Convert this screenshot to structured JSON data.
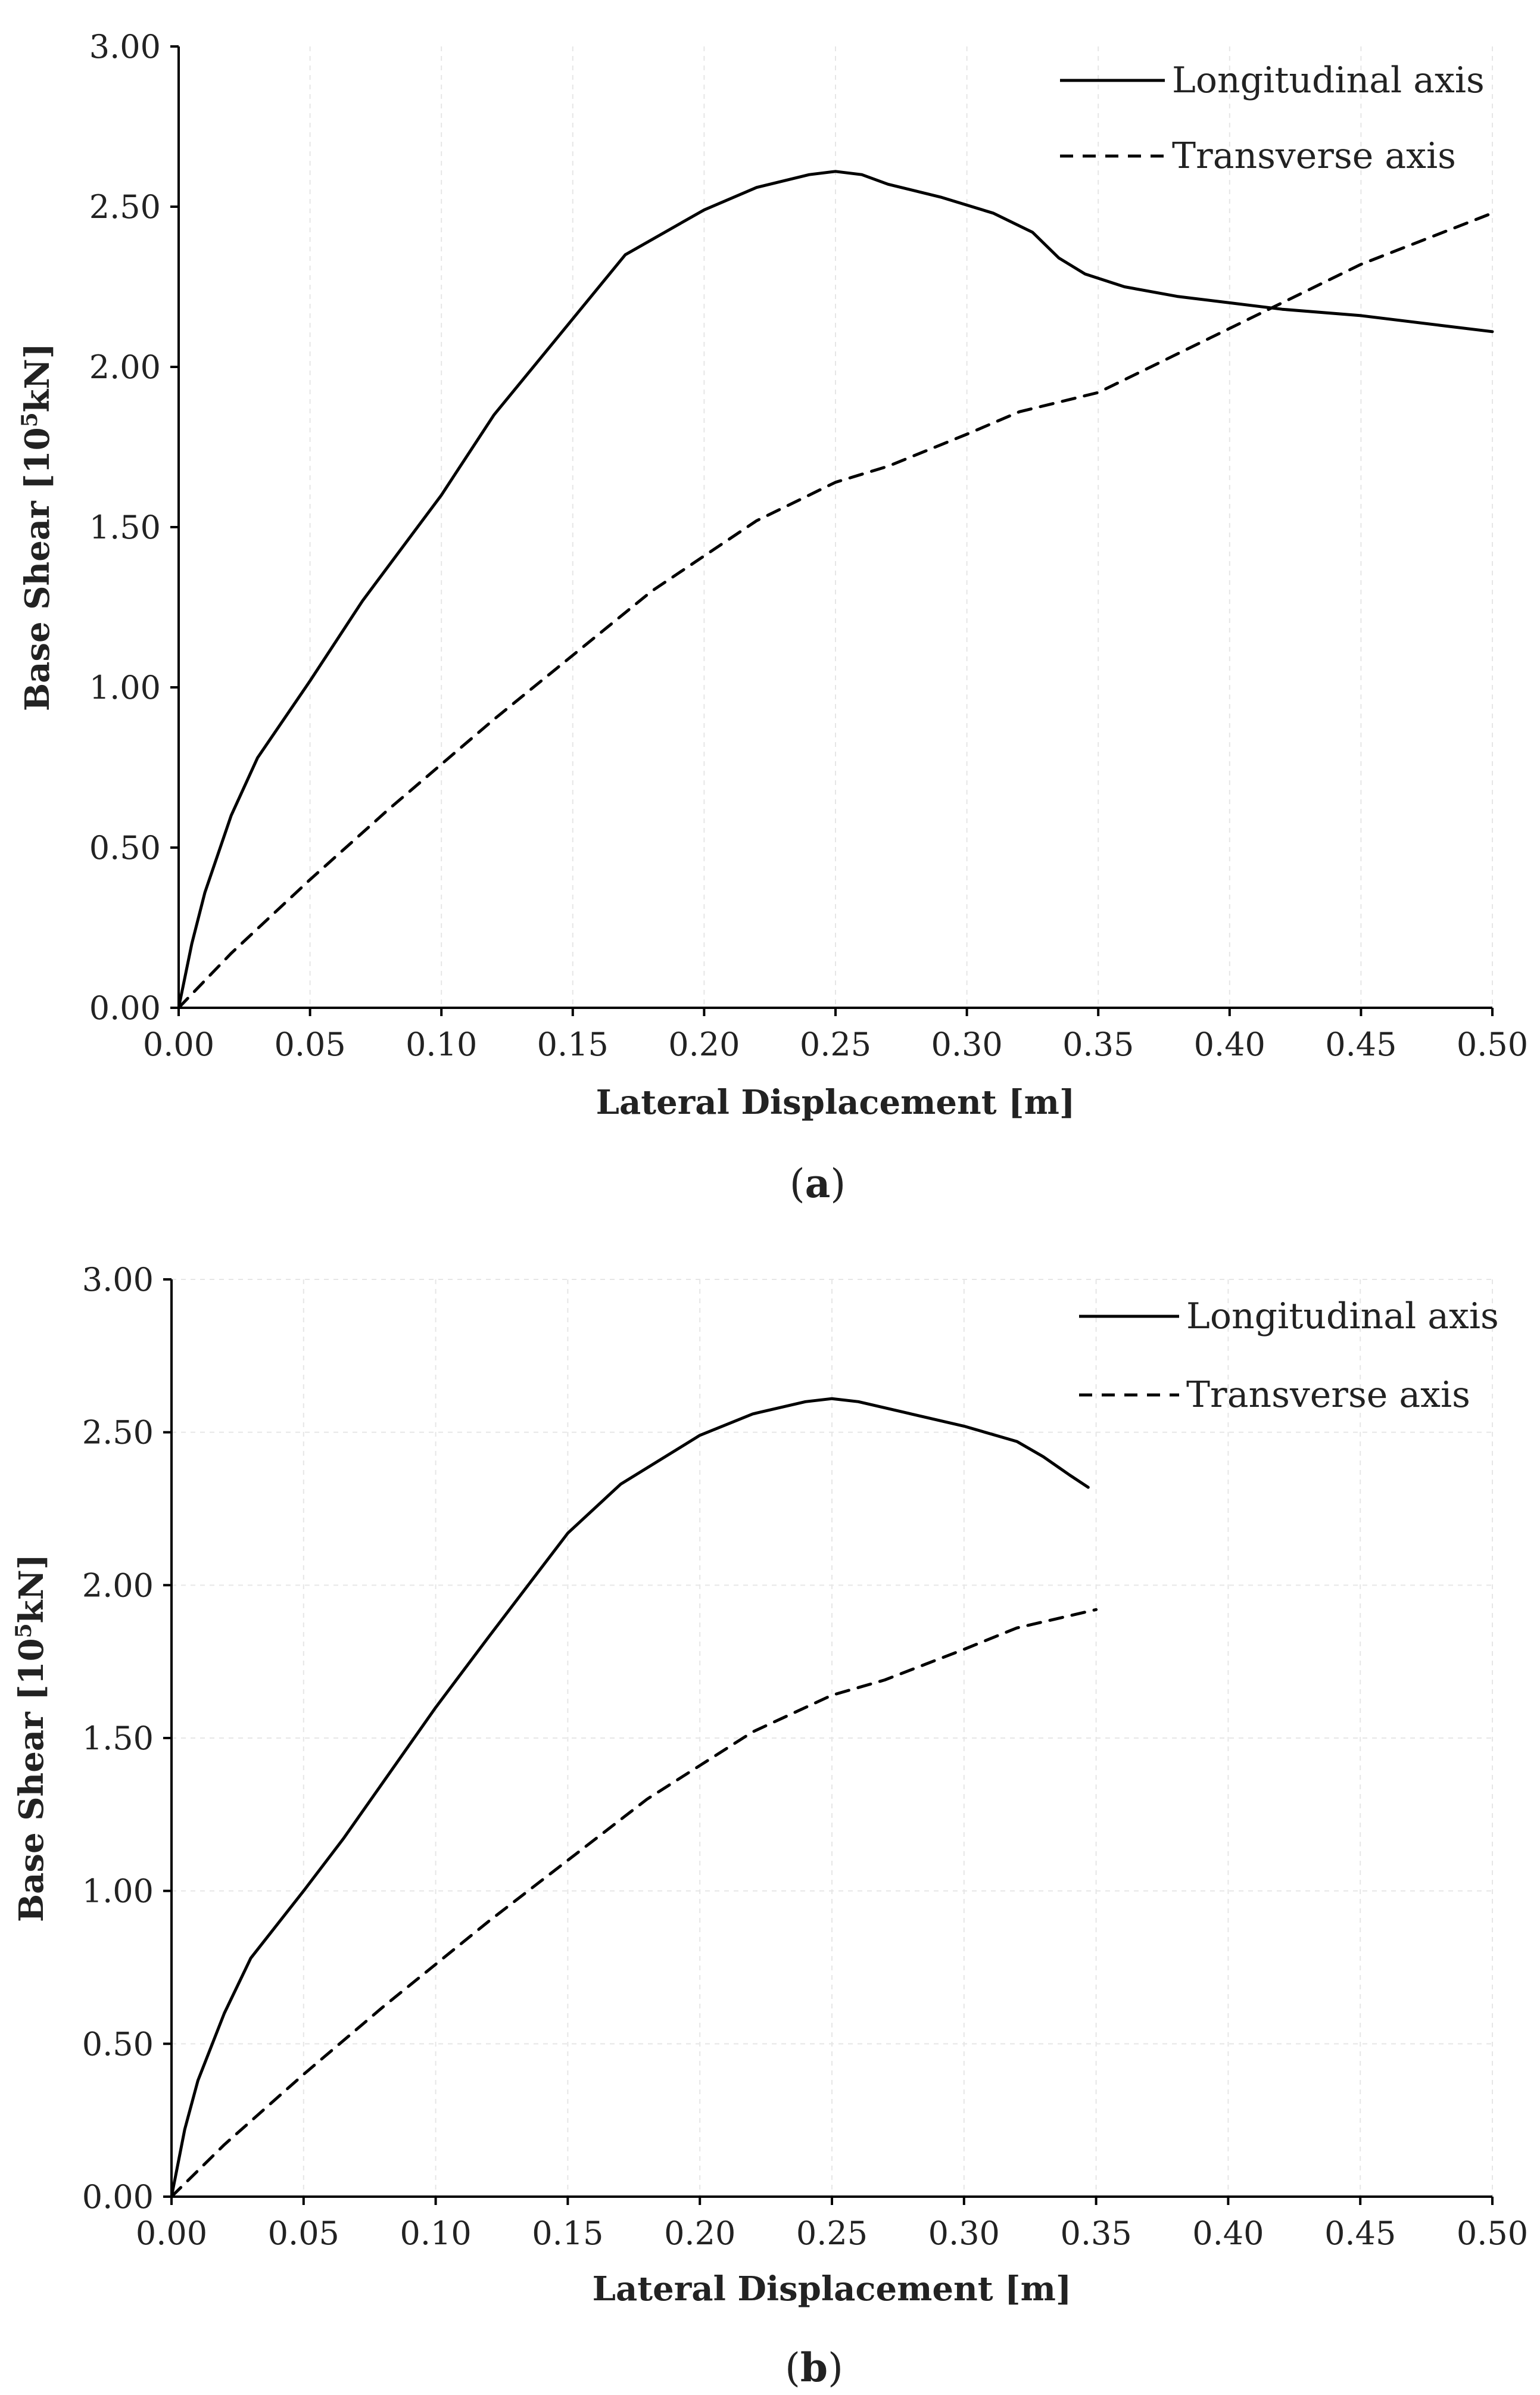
{
  "figure": {
    "captions": [
      "(a)",
      "(b)"
    ]
  },
  "colors": {
    "line": "#000000",
    "grid": "#e6e6e6",
    "text": "#222222"
  },
  "chart_data": [
    {
      "type": "line",
      "panel": "a",
      "caption": "a",
      "xlabel": "Lateral Displacement [m]",
      "ylabel_main": "Base Shear [10",
      "ylabel_sup": "5",
      "ylabel_tail": "kN]",
      "ylabel": "Base Shear [10^5kN]",
      "xlim": [
        0,
        0.5
      ],
      "ylim": [
        0,
        3
      ],
      "xticks": [
        0,
        0.05,
        0.1,
        0.15,
        0.2,
        0.25,
        0.3,
        0.35,
        0.4,
        0.45,
        0.5
      ],
      "xtick_labels": [
        "0.00",
        "0.05",
        "0.10",
        "0.15",
        "0.20",
        "0.25",
        "0.30",
        "0.35",
        "0.40",
        "0.45",
        "0.50"
      ],
      "yticks": [
        0,
        0.5,
        1,
        1.5,
        2,
        2.5,
        3
      ],
      "ytick_labels": [
        "0.00",
        "0.50",
        "1.00",
        "1.50",
        "2.00",
        "2.50",
        "3.00"
      ],
      "grid": "vertical dotted",
      "legend_position": "top-right",
      "series": [
        {
          "name": "Longitudinal axis",
          "style": "solid",
          "x": [
            0,
            0.005,
            0.01,
            0.02,
            0.03,
            0.05,
            0.07,
            0.1,
            0.12,
            0.15,
            0.17,
            0.2,
            0.22,
            0.24,
            0.25,
            0.26,
            0.27,
            0.29,
            0.31,
            0.325,
            0.335,
            0.345,
            0.36,
            0.38,
            0.4,
            0.42,
            0.45,
            0.48,
            0.5
          ],
          "y": [
            0,
            0.2,
            0.36,
            0.6,
            0.78,
            1.02,
            1.27,
            1.6,
            1.85,
            2.15,
            2.35,
            2.49,
            2.56,
            2.6,
            2.61,
            2.6,
            2.57,
            2.53,
            2.48,
            2.42,
            2.34,
            2.29,
            2.25,
            2.22,
            2.2,
            2.18,
            2.16,
            2.13,
            2.11
          ]
        },
        {
          "name": "Transverse axis",
          "style": "dashed",
          "x": [
            0,
            0.02,
            0.05,
            0.08,
            0.1,
            0.12,
            0.15,
            0.18,
            0.2,
            0.22,
            0.25,
            0.27,
            0.3,
            0.32,
            0.34,
            0.35,
            0.4,
            0.45,
            0.5
          ],
          "y": [
            0,
            0.17,
            0.4,
            0.62,
            0.76,
            0.9,
            1.1,
            1.3,
            1.41,
            1.52,
            1.64,
            1.69,
            1.79,
            1.86,
            1.9,
            1.92,
            2.12,
            2.32,
            2.48
          ]
        }
      ]
    },
    {
      "type": "line",
      "panel": "b",
      "caption": "b",
      "xlabel": "Lateral Displacement [m]",
      "ylabel_main": "Base Shear  [10",
      "ylabel_sup": "5",
      "ylabel_tail": "kN]",
      "ylabel": "Base Shear [10^5kN]",
      "xlim": [
        0,
        0.5
      ],
      "ylim": [
        0,
        3
      ],
      "xticks": [
        0,
        0.05,
        0.1,
        0.15,
        0.2,
        0.25,
        0.3,
        0.35,
        0.4,
        0.45,
        0.5
      ],
      "xtick_labels": [
        "0.00",
        "0.05",
        "0.10",
        "0.15",
        "0.20",
        "0.25",
        "0.30",
        "0.35",
        "0.40",
        "0.45",
        "0.50"
      ],
      "yticks": [
        0,
        0.5,
        1,
        1.5,
        2,
        2.5,
        3
      ],
      "ytick_labels": [
        "0.00",
        "0.50",
        "1.00",
        "1.50",
        "2.00",
        "2.50",
        "3.00"
      ],
      "grid": "vertical and horizontal",
      "legend_position": "top-right",
      "series": [
        {
          "name": "Longitudinal axis",
          "style": "solid",
          "x": [
            0,
            0.005,
            0.01,
            0.02,
            0.03,
            0.05,
            0.065,
            0.1,
            0.12,
            0.15,
            0.17,
            0.2,
            0.22,
            0.24,
            0.25,
            0.26,
            0.28,
            0.3,
            0.32,
            0.33,
            0.34,
            0.347
          ],
          "y": [
            0,
            0.22,
            0.38,
            0.6,
            0.78,
            1.0,
            1.17,
            1.6,
            1.83,
            2.17,
            2.33,
            2.49,
            2.56,
            2.6,
            2.61,
            2.6,
            2.56,
            2.52,
            2.47,
            2.42,
            2.36,
            2.32
          ]
        },
        {
          "name": "Transverse axis",
          "style": "dashed",
          "x": [
            0,
            0.02,
            0.05,
            0.08,
            0.1,
            0.12,
            0.15,
            0.18,
            0.2,
            0.22,
            0.25,
            0.27,
            0.3,
            0.32,
            0.34,
            0.35
          ],
          "y": [
            0,
            0.17,
            0.4,
            0.62,
            0.76,
            0.9,
            1.1,
            1.3,
            1.41,
            1.52,
            1.64,
            1.69,
            1.79,
            1.86,
            1.9,
            1.92
          ]
        }
      ]
    }
  ]
}
